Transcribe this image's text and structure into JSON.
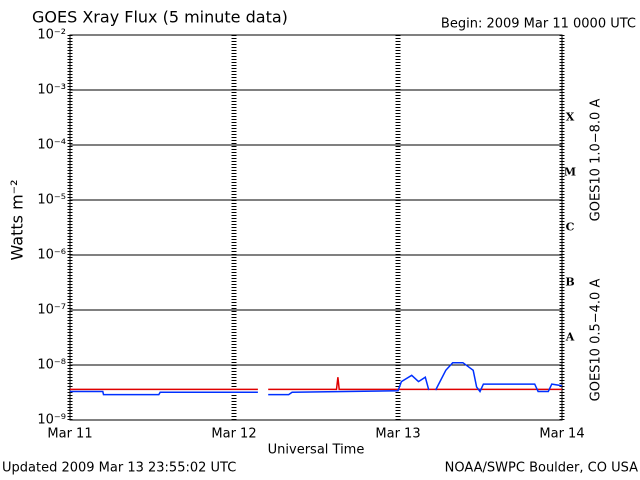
{
  "chart_data": {
    "type": "line",
    "title": "GOES Xray Flux (5 minute data)",
    "subtitle": "Begin:  2009 Mar 11 0000 UTC",
    "xlabel": "Universal Time",
    "ylabel": "Watts m⁻²",
    "footer_left": "Updated 2009 Mar 13 23:55:02 UTC",
    "footer_right": "NOAA/SWPC Boulder, CO USA",
    "flare_classes": [
      "A",
      "B",
      "C",
      "M",
      "X"
    ],
    "log_y": true,
    "grid": true,
    "xlim": [
      0,
      72
    ],
    "xticks": [
      {
        "value": 0,
        "label": "Mar 11"
      },
      {
        "value": 24,
        "label": "Mar 12"
      },
      {
        "value": 48,
        "label": "Mar 13"
      },
      {
        "value": 72,
        "label": "Mar 14"
      }
    ],
    "ylim": [
      1e-09,
      0.01
    ],
    "yticks": [
      {
        "value": 1e-09,
        "label": "10⁻⁹"
      },
      {
        "value": 1e-08,
        "label": "10⁻⁸"
      },
      {
        "value": 1e-07,
        "label": "10⁻⁷"
      },
      {
        "value": 1e-06,
        "label": "10⁻⁶"
      },
      {
        "value": 1e-05,
        "label": "10⁻⁵"
      },
      {
        "value": 0.0001,
        "label": "10⁻⁴"
      },
      {
        "value": 0.001,
        "label": "10⁻³"
      },
      {
        "value": 0.01,
        "label": "10⁻²"
      }
    ],
    "series": [
      {
        "name": "GOES10 1.0−8.0 A",
        "color": "#e00000",
        "x": [
          0,
          27.5,
          28.2,
          29,
          39,
          39.2,
          39.4,
          72
        ],
        "values": [
          3.6e-09,
          3.6e-09,
          null,
          3.6e-09,
          3.6e-09,
          6e-09,
          3.6e-09,
          3.6e-09
        ]
      },
      {
        "name": "GOES10 0.5−4.0 A",
        "color": "#0030ff",
        "x": [
          0,
          4.8,
          4.9,
          13,
          13.2,
          27.5,
          28.2,
          29,
          32,
          32.5,
          48,
          48.5,
          50,
          51,
          52,
          52.5,
          53,
          53.5,
          55,
          56,
          57.5,
          59,
          59.5,
          60,
          60.5,
          68,
          68.5,
          70,
          70.5,
          72
        ],
        "values": [
          3.3e-09,
          3.3e-09,
          2.9e-09,
          2.9e-09,
          3.2e-09,
          3.2e-09,
          null,
          2.9e-09,
          2.9e-09,
          3.2e-09,
          3.4e-09,
          5e-09,
          6.5e-09,
          5e-09,
          6e-09,
          3.5e-09,
          null,
          3.5e-09,
          8e-09,
          1.1e-08,
          1.1e-08,
          8e-09,
          4e-09,
          3.3e-09,
          4.5e-09,
          4.5e-09,
          3.3e-09,
          3.3e-09,
          4.5e-09,
          4.2e-09
        ]
      }
    ]
  }
}
